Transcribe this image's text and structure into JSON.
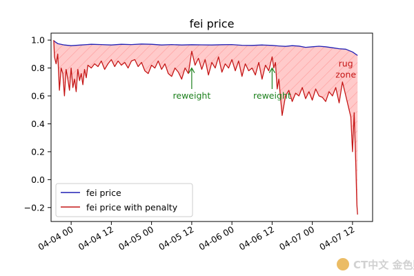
{
  "chart_data": {
    "type": "line",
    "title": "fei price",
    "xlabel": "",
    "ylabel": "",
    "x_ticks": [
      "04-04 00",
      "04-04 12",
      "04-05 00",
      "04-05 12",
      "04-06 00",
      "04-06 12",
      "04-07 00",
      "04-07 12"
    ],
    "xlim_hours": [
      -6,
      90
    ],
    "ylim": [
      -0.3,
      1.05
    ],
    "y_ticks": [
      1.0,
      0.8,
      0.6,
      0.4,
      0.2,
      0.0,
      -0.2
    ],
    "y_tick_labels": [
      "1.0",
      "0.8",
      "0.6",
      "0.4",
      "0.2",
      "0.0",
      "−0.2"
    ],
    "grid": false,
    "legend_position": "lower-left",
    "series": [
      {
        "name": "fei price",
        "color": "#1f1fb4",
        "x_hours": [
          -5.2,
          -4,
          -2,
          0,
          3,
          6,
          9,
          12,
          15,
          18,
          21,
          24,
          27,
          30,
          33,
          36,
          39,
          42,
          45,
          48,
          51,
          54,
          57,
          60,
          62,
          64,
          66,
          68,
          70,
          72,
          74,
          76,
          78,
          80,
          82,
          84,
          85.5
        ],
        "values": [
          0.995,
          0.975,
          0.965,
          0.96,
          0.965,
          0.97,
          0.968,
          0.965,
          0.97,
          0.968,
          0.972,
          0.97,
          0.965,
          0.968,
          0.965,
          0.967,
          0.966,
          0.965,
          0.967,
          0.968,
          0.963,
          0.962,
          0.965,
          0.962,
          0.958,
          0.955,
          0.96,
          0.957,
          0.948,
          0.952,
          0.956,
          0.952,
          0.945,
          0.938,
          0.935,
          0.915,
          0.89
        ]
      },
      {
        "name": "fei price with penalty",
        "color": "#c41515",
        "x_hours": [
          -5.2,
          -5,
          -4.5,
          -4,
          -3.5,
          -3,
          -2.5,
          -2,
          -1.5,
          -1,
          -0.5,
          0,
          0.5,
          1,
          1.5,
          2,
          2.5,
          3,
          3.5,
          4,
          4.5,
          5,
          6,
          7,
          8,
          9,
          10,
          11,
          12,
          13,
          14,
          15,
          16,
          17,
          18,
          19,
          20,
          21,
          22,
          23,
          24,
          25,
          26,
          27,
          28,
          29,
          30,
          31,
          32,
          33,
          34,
          35,
          36,
          37,
          38,
          39,
          40,
          41,
          42,
          43,
          44,
          45,
          46,
          47,
          48,
          49,
          50,
          51,
          52,
          53,
          54,
          55,
          56,
          57,
          58,
          59,
          60,
          60.5,
          61,
          61.5,
          62,
          63,
          64,
          65,
          66,
          67,
          68,
          69,
          70,
          71,
          72,
          73,
          74,
          75,
          76,
          77,
          78,
          79,
          80,
          81,
          82,
          83,
          83.5,
          84,
          84.5,
          85,
          85.3,
          85.5
        ],
        "values": [
          1.0,
          0.88,
          0.83,
          0.9,
          0.64,
          0.8,
          0.76,
          0.6,
          0.79,
          0.72,
          0.64,
          0.8,
          0.66,
          0.72,
          0.63,
          0.79,
          0.71,
          0.76,
          0.68,
          0.79,
          0.73,
          0.82,
          0.8,
          0.83,
          0.81,
          0.85,
          0.79,
          0.83,
          0.86,
          0.81,
          0.85,
          0.82,
          0.84,
          0.8,
          0.85,
          0.86,
          0.81,
          0.84,
          0.78,
          0.76,
          0.82,
          0.8,
          0.85,
          0.79,
          0.83,
          0.76,
          0.74,
          0.8,
          0.77,
          0.72,
          0.8,
          0.76,
          0.92,
          0.82,
          0.87,
          0.79,
          0.86,
          0.75,
          0.84,
          0.8,
          0.88,
          0.77,
          0.83,
          0.8,
          0.86,
          0.78,
          0.85,
          0.74,
          0.83,
          0.78,
          0.8,
          0.75,
          0.84,
          0.72,
          0.82,
          0.78,
          0.88,
          0.8,
          0.84,
          0.65,
          0.72,
          0.46,
          0.6,
          0.64,
          0.56,
          0.62,
          0.6,
          0.66,
          0.58,
          0.63,
          0.57,
          0.65,
          0.6,
          0.59,
          0.56,
          0.63,
          0.6,
          0.66,
          0.55,
          0.7,
          0.6,
          0.5,
          0.45,
          0.2,
          0.48,
          0.1,
          -0.18,
          -0.25
        ]
      }
    ],
    "shaded_region": {
      "between": [
        "fei price",
        "fei price with penalty"
      ],
      "color": "#ffb3b3"
    },
    "annotations": [
      {
        "text": "reweight",
        "x_hours": 36,
        "y_text": 0.6,
        "arrow_to_y": 0.8,
        "color": "#1a7f1a"
      },
      {
        "text": "reweight",
        "x_hours": 60,
        "y_text": 0.6,
        "arrow_to_y": 0.8,
        "color": "#1a7f1a"
      },
      {
        "text": "rug",
        "x_hours": 82,
        "y_text": 0.83,
        "color": "#c41515"
      },
      {
        "text": "zone",
        "x_hours": 82,
        "y_text": 0.75,
        "color": "#c41515"
      }
    ]
  },
  "watermark": {
    "text": "CT中文 金色财经",
    "icon": "jinse-logo-icon"
  }
}
